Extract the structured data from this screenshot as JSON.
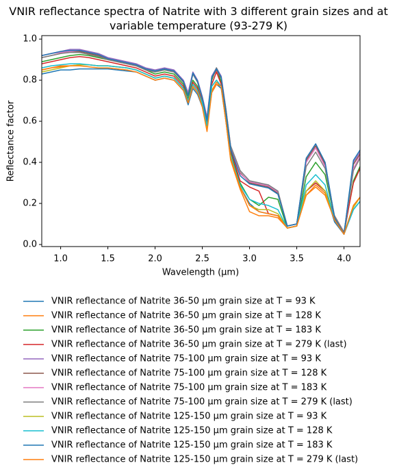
{
  "chart_data": {
    "type": "line",
    "title": "VNIR reflectance spectra of Natrite with 3 different grain sizes and at variable temperature (93-279 K)",
    "x_label": "Wavelength (μm)",
    "y_label": "Reflectance factor",
    "xlim": [
      0.8,
      4.17
    ],
    "ylim": [
      -0.01,
      1.017
    ],
    "xticks": [
      {
        "value": 1,
        "label": "1.0"
      },
      1.5,
      {
        "value": 2,
        "label": "2.0"
      },
      2.5,
      {
        "value": 3,
        "label": "3.0"
      },
      3.5,
      {
        "value": 4,
        "label": "4.0"
      }
    ],
    "yticks": [
      {
        "value": 0,
        "label": "0.0"
      },
      0.2,
      0.4,
      0.6,
      0.8,
      {
        "value": 1,
        "label": "1.0"
      }
    ],
    "x": [
      0.8,
      0.9,
      1.0,
      1.1,
      1.2,
      1.3,
      1.4,
      1.5,
      1.6,
      1.7,
      1.8,
      1.9,
      2.0,
      2.1,
      2.2,
      2.3,
      2.35,
      2.4,
      2.45,
      2.5,
      2.55,
      2.6,
      2.65,
      2.7,
      2.75,
      2.8,
      2.9,
      3.0,
      3.1,
      3.2,
      3.3,
      3.4,
      3.5,
      3.6,
      3.7,
      3.8,
      3.9,
      4.0,
      4.1,
      4.17
    ],
    "series": [
      {
        "name": "VNIR reflectance of Natrite 36-50 µm grain size at T = 93 K",
        "color": "#1f77b4",
        "values": [
          0.83,
          0.84,
          0.85,
          0.85,
          0.855,
          0.855,
          0.855,
          0.855,
          0.85,
          0.845,
          0.84,
          0.82,
          0.8,
          0.81,
          0.8,
          0.75,
          0.68,
          0.76,
          0.73,
          0.67,
          0.57,
          0.74,
          0.78,
          0.76,
          0.6,
          0.42,
          0.28,
          0.2,
          0.16,
          0.15,
          0.14,
          0.08,
          0.09,
          0.26,
          0.3,
          0.26,
          0.11,
          0.05,
          0.17,
          0.21
        ]
      },
      {
        "name": "VNIR reflectance of Natrite 36-50 µm grain size at T = 128 K",
        "color": "#ff7f0e",
        "values": [
          0.85,
          0.86,
          0.87,
          0.87,
          0.875,
          0.875,
          0.87,
          0.87,
          0.865,
          0.86,
          0.85,
          0.83,
          0.81,
          0.82,
          0.81,
          0.76,
          0.69,
          0.77,
          0.74,
          0.68,
          0.56,
          0.75,
          0.79,
          0.77,
          0.6,
          0.41,
          0.27,
          0.16,
          0.14,
          0.14,
          0.13,
          0.08,
          0.09,
          0.24,
          0.29,
          0.25,
          0.12,
          0.05,
          0.19,
          0.23
        ]
      },
      {
        "name": "VNIR reflectance of Natrite 36-50 µm grain size at T = 183 K",
        "color": "#2ca02c",
        "values": [
          0.89,
          0.9,
          0.91,
          0.92,
          0.925,
          0.92,
          0.91,
          0.9,
          0.89,
          0.88,
          0.87,
          0.85,
          0.83,
          0.84,
          0.83,
          0.78,
          0.71,
          0.8,
          0.77,
          0.69,
          0.58,
          0.8,
          0.86,
          0.79,
          0.63,
          0.45,
          0.3,
          0.22,
          0.19,
          0.23,
          0.22,
          0.08,
          0.09,
          0.33,
          0.4,
          0.34,
          0.13,
          0.05,
          0.31,
          0.38
        ]
      },
      {
        "name": "VNIR reflectance of Natrite 36-50 µm grain size at T = 279 K (last)",
        "color": "#d62728",
        "values": [
          0.88,
          0.89,
          0.9,
          0.91,
          0.915,
          0.91,
          0.9,
          0.89,
          0.88,
          0.87,
          0.86,
          0.84,
          0.82,
          0.83,
          0.82,
          0.77,
          0.7,
          0.79,
          0.76,
          0.7,
          0.59,
          0.78,
          0.84,
          0.78,
          0.64,
          0.46,
          0.31,
          0.28,
          0.26,
          0.15,
          0.14,
          0.09,
          0.1,
          0.26,
          0.3,
          0.26,
          0.14,
          0.06,
          0.3,
          0.37
        ]
      },
      {
        "name": "VNIR reflectance of Natrite 75-100 µm grain size at T = 93 K",
        "color": "#9467bd",
        "values": [
          0.92,
          0.93,
          0.94,
          0.95,
          0.95,
          0.94,
          0.93,
          0.91,
          0.9,
          0.89,
          0.88,
          0.86,
          0.85,
          0.86,
          0.85,
          0.8,
          0.74,
          0.84,
          0.8,
          0.72,
          0.62,
          0.82,
          0.86,
          0.82,
          0.66,
          0.48,
          0.36,
          0.31,
          0.3,
          0.29,
          0.26,
          0.09,
          0.1,
          0.42,
          0.49,
          0.4,
          0.13,
          0.05,
          0.4,
          0.45
        ]
      },
      {
        "name": "VNIR reflectance of Natrite 75-100 µm grain size at T = 128 K",
        "color": "#8c564b",
        "values": [
          0.91,
          0.92,
          0.93,
          0.94,
          0.94,
          0.93,
          0.92,
          0.9,
          0.89,
          0.88,
          0.87,
          0.85,
          0.84,
          0.85,
          0.84,
          0.79,
          0.73,
          0.83,
          0.79,
          0.71,
          0.61,
          0.81,
          0.85,
          0.81,
          0.65,
          0.47,
          0.35,
          0.3,
          0.29,
          0.28,
          0.25,
          0.09,
          0.1,
          0.41,
          0.48,
          0.39,
          0.13,
          0.05,
          0.39,
          0.44
        ]
      },
      {
        "name": "VNIR reflectance of Natrite 75-100 µm grain size at T = 183 K",
        "color": "#e377c2",
        "values": [
          0.92,
          0.93,
          0.935,
          0.94,
          0.945,
          0.935,
          0.925,
          0.905,
          0.895,
          0.885,
          0.875,
          0.855,
          0.845,
          0.855,
          0.845,
          0.795,
          0.735,
          0.835,
          0.795,
          0.715,
          0.615,
          0.815,
          0.855,
          0.815,
          0.655,
          0.475,
          0.345,
          0.305,
          0.295,
          0.285,
          0.255,
          0.09,
          0.1,
          0.4,
          0.47,
          0.38,
          0.13,
          0.05,
          0.37,
          0.43
        ]
      },
      {
        "name": "VNIR reflectance of Natrite 75-100 µm grain size at T = 279 K (last)",
        "color": "#7f7f7f",
        "values": [
          0.91,
          0.92,
          0.93,
          0.935,
          0.935,
          0.925,
          0.915,
          0.9,
          0.89,
          0.88,
          0.87,
          0.85,
          0.84,
          0.85,
          0.84,
          0.79,
          0.73,
          0.83,
          0.79,
          0.71,
          0.61,
          0.81,
          0.86,
          0.81,
          0.66,
          0.48,
          0.36,
          0.31,
          0.3,
          0.29,
          0.26,
          0.09,
          0.1,
          0.38,
          0.45,
          0.37,
          0.14,
          0.06,
          0.36,
          0.42
        ]
      },
      {
        "name": "VNIR reflectance of Natrite 125-150 µm grain size at T = 93 K",
        "color": "#bcbd22",
        "values": [
          0.84,
          0.85,
          0.86,
          0.87,
          0.875,
          0.875,
          0.87,
          0.87,
          0.865,
          0.86,
          0.85,
          0.83,
          0.81,
          0.82,
          0.81,
          0.76,
          0.7,
          0.78,
          0.75,
          0.69,
          0.57,
          0.77,
          0.8,
          0.77,
          0.6,
          0.42,
          0.28,
          0.19,
          0.17,
          0.17,
          0.15,
          0.08,
          0.09,
          0.26,
          0.31,
          0.26,
          0.12,
          0.05,
          0.18,
          0.23
        ]
      },
      {
        "name": "VNIR reflectance of Natrite 125-150 µm grain size at T = 128 K",
        "color": "#17becf",
        "values": [
          0.86,
          0.87,
          0.875,
          0.88,
          0.88,
          0.875,
          0.87,
          0.87,
          0.865,
          0.86,
          0.85,
          0.83,
          0.81,
          0.82,
          0.81,
          0.76,
          0.7,
          0.78,
          0.75,
          0.69,
          0.58,
          0.77,
          0.8,
          0.77,
          0.61,
          0.43,
          0.29,
          0.22,
          0.2,
          0.19,
          0.17,
          0.08,
          0.09,
          0.29,
          0.34,
          0.29,
          0.12,
          0.05,
          0.17,
          0.21
        ]
      },
      {
        "name": "VNIR reflectance of Natrite 125-150 µm grain size at T = 183 K",
        "color": "#1f77b4",
        "values": [
          0.92,
          0.93,
          0.94,
          0.945,
          0.945,
          0.935,
          0.925,
          0.905,
          0.895,
          0.885,
          0.875,
          0.855,
          0.845,
          0.855,
          0.845,
          0.795,
          0.725,
          0.835,
          0.795,
          0.715,
          0.605,
          0.815,
          0.855,
          0.815,
          0.645,
          0.465,
          0.335,
          0.295,
          0.285,
          0.275,
          0.245,
          0.09,
          0.1,
          0.42,
          0.49,
          0.4,
          0.13,
          0.05,
          0.41,
          0.46
        ]
      },
      {
        "name": "VNIR reflectance of Natrite 125-150 µm grain size at T = 279 K (last)",
        "color": "#ff7f0e",
        "values": [
          0.85,
          0.86,
          0.865,
          0.87,
          0.87,
          0.865,
          0.86,
          0.86,
          0.855,
          0.85,
          0.84,
          0.82,
          0.8,
          0.81,
          0.8,
          0.75,
          0.69,
          0.77,
          0.74,
          0.67,
          0.55,
          0.74,
          0.78,
          0.77,
          0.6,
          0.42,
          0.28,
          0.19,
          0.16,
          0.15,
          0.14,
          0.08,
          0.09,
          0.24,
          0.28,
          0.24,
          0.12,
          0.05,
          0.19,
          0.23
        ]
      }
    ]
  }
}
